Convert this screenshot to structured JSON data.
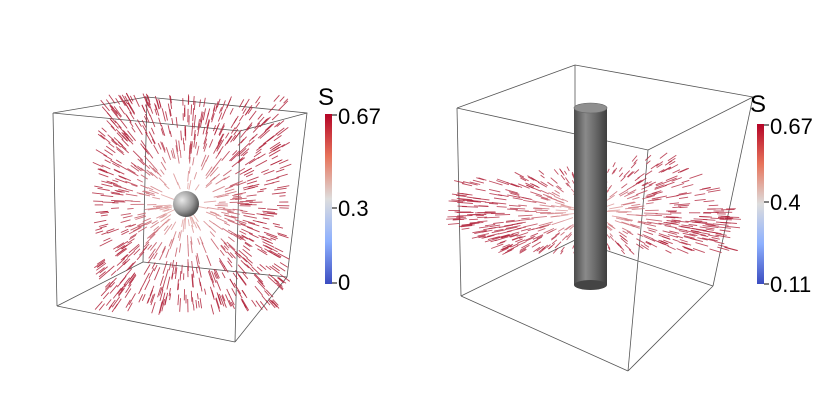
{
  "panel_left": {
    "colorbar": {
      "title": "S",
      "ticks": [
        "0.67",
        "0.3",
        "0"
      ],
      "values": [
        0.67,
        0.3,
        0
      ]
    }
  },
  "panel_right": {
    "colorbar": {
      "title": "S",
      "ticks": [
        "0.67",
        "0.4",
        "0.11"
      ],
      "values": [
        0.67,
        0.4,
        0.11
      ]
    }
  },
  "colors": {
    "high": "#b40426",
    "mid": "#dddddd",
    "low": "#3b4cc0",
    "director_short": "#f2cfc4",
    "director_long": "#b0223a",
    "sphere": "#9a9a9a",
    "cylinder": "#6e6e6e",
    "box_edge": "#555555"
  }
}
